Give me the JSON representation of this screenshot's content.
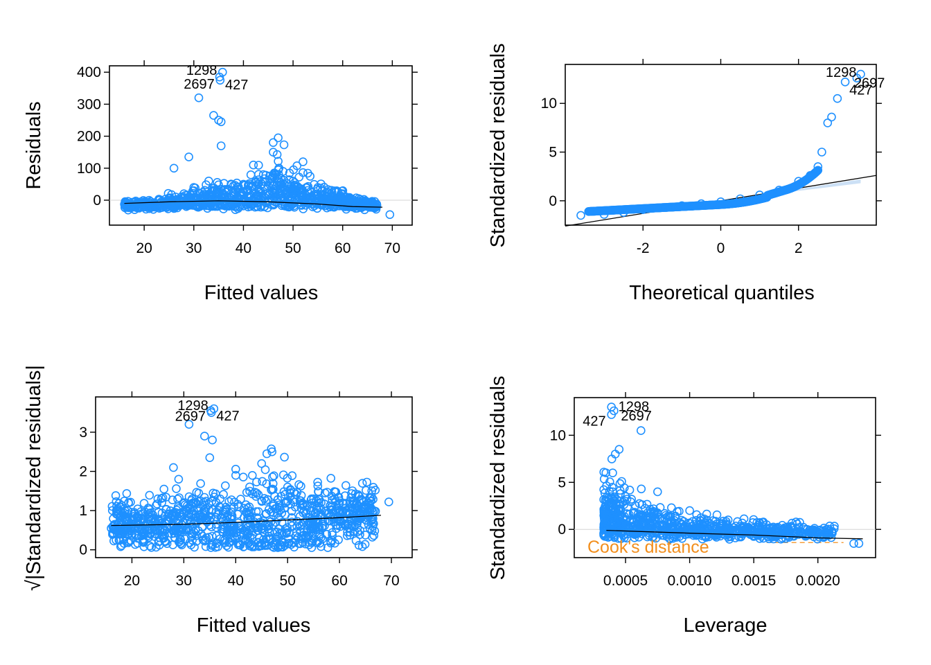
{
  "chart_data": [
    {
      "type": "scatter",
      "panel": "residuals-vs-fitted",
      "xlabel": "Fitted values",
      "ylabel": "Residuals",
      "xlim": [
        13,
        74
      ],
      "ylim": [
        -78,
        420
      ],
      "xticks": [
        20,
        30,
        40,
        50,
        60,
        70
      ],
      "yticks": [
        0,
        100,
        200,
        300,
        400
      ],
      "points": [
        [
          16.5,
          -8
        ],
        [
          20,
          -5
        ],
        [
          25,
          5
        ],
        [
          28,
          20
        ],
        [
          30,
          40
        ],
        [
          33,
          60
        ],
        [
          37,
          30
        ],
        [
          40,
          50
        ],
        [
          44,
          80
        ],
        [
          48,
          90
        ],
        [
          50,
          60
        ],
        [
          55,
          40
        ],
        [
          60,
          20
        ],
        [
          65,
          -10
        ],
        [
          69.5,
          -45
        ],
        [
          31,
          320
        ],
        [
          34,
          265
        ],
        [
          35,
          250
        ],
        [
          35.5,
          245
        ],
        [
          35.5,
          170
        ],
        [
          29,
          135
        ],
        [
          46,
          150
        ],
        [
          47,
          195
        ],
        [
          46,
          180
        ],
        [
          42,
          110
        ],
        [
          26,
          100
        ],
        [
          52,
          120
        ]
      ],
      "labeled_points": [
        {
          "label": "1298",
          "x": 35.8,
          "y": 400
        },
        {
          "label": "2697",
          "x": 35.3,
          "y": 375
        },
        {
          "label": "427",
          "x": 35.2,
          "y": 385
        }
      ],
      "smooth": [
        [
          16,
          -10
        ],
        [
          25,
          -5
        ],
        [
          35,
          -2
        ],
        [
          45,
          -5
        ],
        [
          55,
          -12
        ],
        [
          62,
          -20
        ],
        [
          68,
          -22
        ]
      ]
    },
    {
      "type": "scatter",
      "panel": "normal-qq",
      "xlabel": "Theoretical quantiles",
      "ylabel": "Standardized residuals",
      "xlim": [
        -4,
        4
      ],
      "ylim": [
        -2.5,
        14
      ],
      "xticks": [
        -2,
        0,
        2
      ],
      "yticks": [
        0,
        5,
        10
      ],
      "qq_points": [
        [
          -3.6,
          -1.5
        ],
        [
          -3,
          -1.4
        ],
        [
          -2.5,
          -1.2
        ],
        [
          -2,
          -0.9
        ],
        [
          -1.5,
          -0.7
        ],
        [
          -1,
          -0.5
        ],
        [
          -0.5,
          -0.3
        ],
        [
          0,
          -0.1
        ],
        [
          0.5,
          0.2
        ],
        [
          1,
          0.6
        ],
        [
          1.5,
          1.1
        ],
        [
          2,
          2.0
        ],
        [
          2.3,
          2.6
        ],
        [
          2.5,
          3.5
        ],
        [
          2.6,
          5
        ],
        [
          2.75,
          8
        ],
        [
          2.85,
          8.6
        ],
        [
          3.0,
          10.5
        ],
        [
          3.2,
          12.2
        ],
        [
          3.5,
          12.6
        ],
        [
          3.6,
          13
        ]
      ],
      "labeled_points": [
        {
          "label": "1298",
          "x": 3.6,
          "y": 13
        },
        {
          "label": "2697",
          "x": 3.5,
          "y": 12.6
        },
        {
          "label": "427",
          "x": 3.2,
          "y": 12.2
        }
      ],
      "reference_line": {
        "intercept": 0,
        "slope": 0.65
      }
    },
    {
      "type": "scatter",
      "panel": "scale-location",
      "xlabel": "Fitted values",
      "ylabel": "√|Standardized residuals|",
      "xlim": [
        13,
        74
      ],
      "ylim": [
        -0.2,
        3.9
      ],
      "xticks": [
        20,
        30,
        40,
        50,
        60,
        70
      ],
      "yticks": [
        0,
        1,
        2,
        3
      ],
      "points": [
        [
          16,
          0.55
        ],
        [
          20,
          0.6
        ],
        [
          25,
          1.3
        ],
        [
          28,
          2.1
        ],
        [
          29,
          1.8
        ],
        [
          31,
          3.2
        ],
        [
          34,
          2.9
        ],
        [
          35,
          2.35
        ],
        [
          35.5,
          2.8
        ],
        [
          40,
          1.9
        ],
        [
          46,
          2.45
        ],
        [
          47,
          2.5
        ],
        [
          45,
          2.2
        ],
        [
          50,
          1.6
        ],
        [
          55,
          1.3
        ],
        [
          60,
          1.2
        ],
        [
          65,
          1.15
        ],
        [
          69.5,
          1.22
        ]
      ],
      "labeled_points": [
        {
          "label": "1298",
          "x": 35.8,
          "y": 3.6
        },
        {
          "label": "2697",
          "x": 35.3,
          "y": 3.5
        },
        {
          "label": "427",
          "x": 35.2,
          "y": 3.55
        }
      ],
      "smooth": [
        [
          16,
          0.62
        ],
        [
          30,
          0.65
        ],
        [
          40,
          0.7
        ],
        [
          50,
          0.76
        ],
        [
          60,
          0.82
        ],
        [
          68,
          0.88
        ]
      ]
    },
    {
      "type": "scatter",
      "panel": "residuals-vs-leverage",
      "xlabel": "Leverage",
      "ylabel": "Standardized residuals",
      "xlim": [
        0.0001,
        0.00245
      ],
      "ylim": [
        -3,
        14
      ],
      "xticks": [
        0.0005,
        0.001,
        0.0015,
        0.002
      ],
      "xticklabels": [
        "0.0005",
        "0.0010",
        "0.0015",
        "0.0020"
      ],
      "yticks": [
        0,
        5,
        10
      ],
      "points": [
        [
          0.00035,
          1
        ],
        [
          0.0004,
          4
        ],
        [
          0.0004,
          6
        ],
        [
          0.00042,
          8
        ],
        [
          0.00045,
          8.5
        ],
        [
          0.00062,
          10.5
        ],
        [
          0.0005,
          3.5
        ],
        [
          0.00075,
          4
        ],
        [
          0.001,
          2
        ],
        [
          0.0013,
          1
        ],
        [
          0.0016,
          0.5
        ],
        [
          0.0019,
          0
        ],
        [
          0.00228,
          -1.5
        ],
        [
          0.00232,
          -1.5
        ]
      ],
      "labeled_points": [
        {
          "label": "1298",
          "x": 0.00039,
          "y": 13
        },
        {
          "label": "2697",
          "x": 0.00041,
          "y": 12.6
        },
        {
          "label": "427",
          "x": 0.00039,
          "y": 12.2
        }
      ],
      "smooth": [
        [
          0.00035,
          -0.1
        ],
        [
          0.001,
          -0.4
        ],
        [
          0.0015,
          -0.6
        ],
        [
          0.002,
          -0.9
        ],
        [
          0.00235,
          -1
        ]
      ],
      "annotation": "Cook's distance"
    }
  ]
}
